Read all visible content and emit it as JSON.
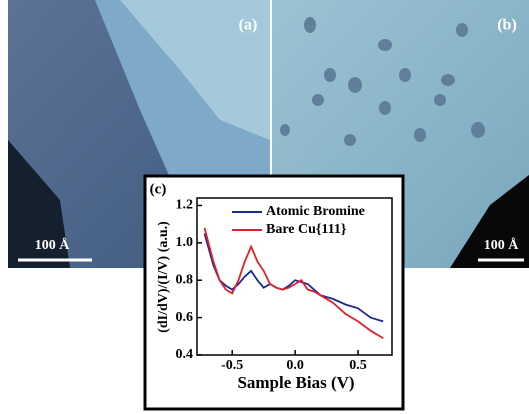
{
  "panels": [
    {
      "label": "(a)",
      "scale_bar": "100 Å"
    },
    {
      "label": "(b)",
      "scale_bar": "100 Å"
    }
  ],
  "chart_data": {
    "type": "line",
    "label": "(c)",
    "x_label": "Sample Bias (V)",
    "y_label": "(dI/dV)/(I/V) (a.u.)",
    "x": [
      -0.72,
      -0.65,
      -0.6,
      -0.55,
      -0.5,
      -0.45,
      -0.4,
      -0.35,
      -0.3,
      -0.25,
      -0.2,
      -0.15,
      -0.1,
      -0.05,
      0,
      0.05,
      0.1,
      0.15,
      0.2,
      0.3,
      0.4,
      0.5,
      0.6,
      0.7
    ],
    "series": [
      {
        "name": "Atomic Bromine",
        "color": "#1c2a8c",
        "values": [
          1.05,
          0.88,
          0.8,
          0.77,
          0.75,
          0.78,
          0.82,
          0.85,
          0.8,
          0.76,
          0.78,
          0.76,
          0.75,
          0.77,
          0.8,
          0.79,
          0.78,
          0.75,
          0.72,
          0.7,
          0.67,
          0.65,
          0.6,
          0.58
        ]
      },
      {
        "name": "Bare Cu{111}",
        "color": "#e0202a",
        "values": [
          1.08,
          0.9,
          0.8,
          0.75,
          0.73,
          0.8,
          0.9,
          0.98,
          0.9,
          0.85,
          0.78,
          0.76,
          0.75,
          0.76,
          0.78,
          0.8,
          0.75,
          0.74,
          0.72,
          0.68,
          0.62,
          0.58,
          0.53,
          0.49
        ]
      }
    ],
    "xlim": [
      -0.78,
      0.77
    ],
    "ylim": [
      0.4,
      1.24
    ],
    "xticks": [
      -0.5,
      {
        "value": 0,
        "label": "0.0"
      },
      0.5
    ],
    "yticks": [
      0.4,
      0.6,
      0.8,
      {
        "value": 1,
        "label": "1.0"
      },
      1.2
    ]
  }
}
